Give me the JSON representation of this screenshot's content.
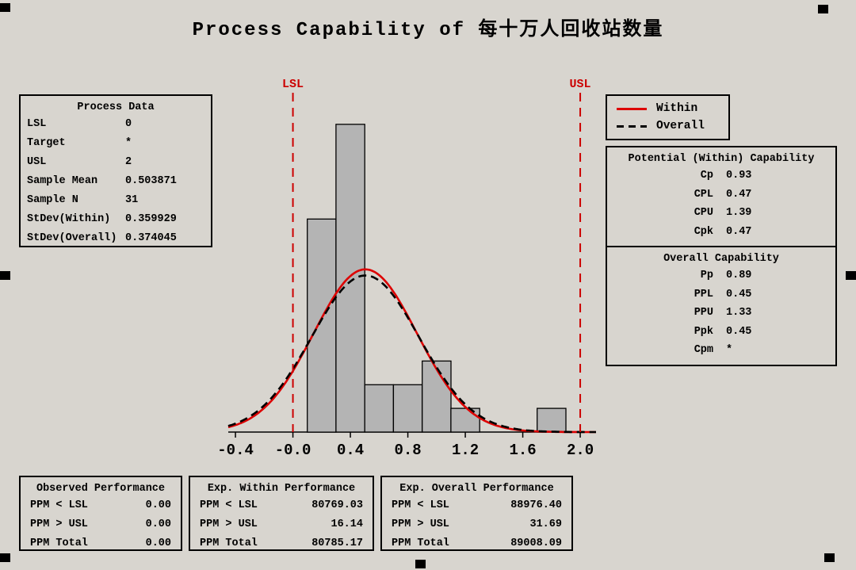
{
  "title": "Process Capability of 每十万人回收站数量",
  "process_data": {
    "title": "Process Data",
    "rows": [
      {
        "label": "LSL",
        "value": "0"
      },
      {
        "label": "Target",
        "value": "*"
      },
      {
        "label": "USL",
        "value": "2"
      },
      {
        "label": "Sample Mean",
        "value": "0.503871"
      },
      {
        "label": "Sample N",
        "value": "31"
      },
      {
        "label": "StDev(Within)",
        "value": "0.359929"
      },
      {
        "label": "StDev(Overall)",
        "value": "0.374045"
      }
    ]
  },
  "legend": {
    "items": [
      {
        "label": "Within",
        "style": "solid",
        "color": "#dd0000"
      },
      {
        "label": "Overall",
        "style": "dashed",
        "color": "#000000"
      }
    ]
  },
  "within_capability": {
    "title": "Potential (Within) Capability",
    "rows": [
      {
        "label": "Cp",
        "value": "0.93"
      },
      {
        "label": "CPL",
        "value": "0.47"
      },
      {
        "label": "CPU",
        "value": "1.39"
      },
      {
        "label": "Cpk",
        "value": "0.47"
      }
    ]
  },
  "overall_capability": {
    "title": "Overall Capability",
    "rows": [
      {
        "label": "Pp",
        "value": "0.89"
      },
      {
        "label": "PPL",
        "value": "0.45"
      },
      {
        "label": "PPU",
        "value": "1.33"
      },
      {
        "label": "Ppk",
        "value": "0.45"
      },
      {
        "label": "Cpm",
        "value": "*"
      }
    ]
  },
  "performance_tables": [
    {
      "title": "Observed Performance",
      "rows": [
        {
          "label": "PPM < LSL",
          "value": "0.00"
        },
        {
          "label": "PPM > USL",
          "value": "0.00"
        },
        {
          "label": "PPM Total",
          "value": "0.00"
        }
      ]
    },
    {
      "title": "Exp. Within Performance",
      "rows": [
        {
          "label": "PPM < LSL",
          "value": "80769.03"
        },
        {
          "label": "PPM > USL",
          "value": "16.14"
        },
        {
          "label": "PPM Total",
          "value": "80785.17"
        }
      ]
    },
    {
      "title": "Exp. Overall Performance",
      "rows": [
        {
          "label": "PPM < LSL",
          "value": "88976.40"
        },
        {
          "label": "PPM > USL",
          "value": "31.69"
        },
        {
          "label": "PPM Total",
          "value": "89008.09"
        }
      ]
    }
  ],
  "chart_data": {
    "type": "bar",
    "subtype": "capability-histogram-with-normal-curves",
    "title": "Process Capability of 每十万人回收站数量",
    "bin_width": 0.2,
    "bins": [
      {
        "center": 0.2,
        "count": 9
      },
      {
        "center": 0.4,
        "count": 13
      },
      {
        "center": 0.6,
        "count": 2
      },
      {
        "center": 0.8,
        "count": 2
      },
      {
        "center": 1.0,
        "count": 3
      },
      {
        "center": 1.2,
        "count": 1
      },
      {
        "center": 1.8,
        "count": 1
      }
    ],
    "sample_n": 31,
    "mean": 0.503871,
    "stdev_within": 0.359929,
    "stdev_overall": 0.374045,
    "lsl": 0,
    "usl": 2,
    "lsl_label": "LSL",
    "usl_label": "USL",
    "x_ticks": [
      -0.4,
      0,
      0.4,
      0.8,
      1.2,
      1.6,
      2.0
    ],
    "x_tick_labels": [
      "-0.4",
      "-0.0",
      "0.4",
      "0.8",
      "1.2",
      "1.6",
      "2.0"
    ],
    "xlim": [
      -0.45,
      2.11
    ],
    "ylim_counts": [
      0,
      14.4
    ],
    "grid": false,
    "legend_position": "top-right",
    "colors": {
      "bar_fill": "#b4b4b4",
      "bar_stroke": "#000000",
      "within_curve": "#dd0000",
      "overall_curve": "#000000",
      "spec_line": "#cc0000"
    }
  }
}
